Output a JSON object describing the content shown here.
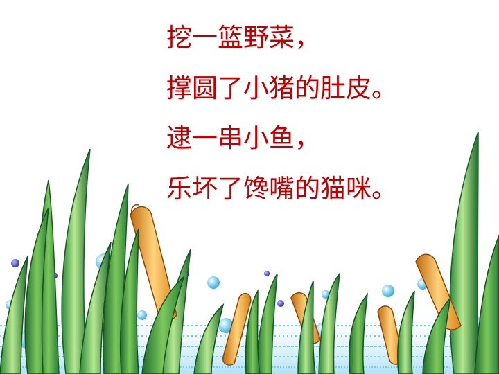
{
  "poem": {
    "lines": [
      "挖一篮野菜，",
      "撑圆了小猪的肚皮。",
      "逮一串小鱼，",
      "乐坏了馋嘴的猫咪。"
    ],
    "text_color": "#c00000"
  },
  "illustration": {
    "subject": "underwater seaweed with bubbles and orange cattails",
    "leaf_color": "#2e8b3d",
    "leaf_light": "#8fd06a",
    "cattail_color": "#f0a030",
    "bubble_color": "#6fc7ea",
    "dot_color": "#3a3ad0"
  }
}
